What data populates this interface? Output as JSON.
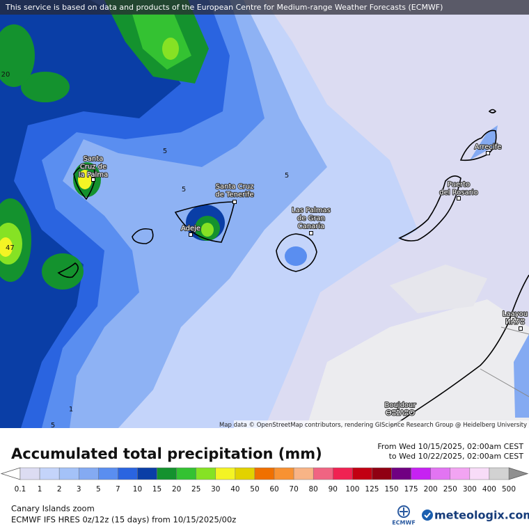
{
  "banner": "This service is based on data and products of the European Centre for Medium-range Weather Forecasts (ECMWF)",
  "places": [
    {
      "lines": [
        "Santa",
        "Cruz de",
        "la Palma"
      ]
    },
    {
      "lines": [
        "Santa Cruz",
        "de Tenerife"
      ]
    },
    {
      "lines": [
        "Adeje"
      ]
    },
    {
      "lines": [
        "Las Palmas",
        "de Gran",
        "Canaria"
      ]
    },
    {
      "lines": [
        "Puerto",
        "del Rosario"
      ]
    },
    {
      "lines": [
        "Arrecife"
      ]
    },
    {
      "lines": [
        "Laayou",
        "ⵍⵄⵢⵓ"
      ]
    },
    {
      "lines": [
        "Boujdour",
        "ⴱⵓⵊⴷⵓⵔ"
      ]
    }
  ],
  "contour_labels": [
    "20",
    "5",
    "5",
    "5",
    "47",
    "5",
    "1"
  ],
  "attribution": "Map data © OpenStreetMap contributors, rendering GIScience Research Group @ Heidelberg University",
  "legend": {
    "title": "Accumulated total precipitation (mm)",
    "period_from": "From Wed 10/15/2025, 02:00am CEST",
    "period_to": "to Wed 10/22/2025, 02:00am CEST",
    "labels": [
      0.1,
      1,
      2,
      3,
      5,
      7,
      10,
      15,
      20,
      25,
      30,
      40,
      50,
      60,
      70,
      80,
      90,
      100,
      125,
      150,
      175,
      200,
      250,
      300,
      400,
      500
    ],
    "colors": [
      "#dcdcf2",
      "#c4d4fa",
      "#a4c2f8",
      "#84aaf2",
      "#5a8ef0",
      "#2a64e0",
      "#0a3ea6",
      "#14922e",
      "#34c232",
      "#86e224",
      "#f4f424",
      "#e2d200",
      "#f07000",
      "#f89232",
      "#f8b486",
      "#f06482",
      "#f02252",
      "#c20012",
      "#900012",
      "#700082",
      "#c622f2",
      "#e274f2",
      "#f2a4f2",
      "#f8dcf8",
      "#d2d2d2"
    ],
    "below_color": "#ffffff",
    "above_color": "#909090"
  },
  "footer": {
    "region": "Canary Islands zoom",
    "model": "ECMWF IFS HRES 0z/12z (15 days) from  10/15/2025/00z"
  },
  "logos": {
    "ecmwf": "ECMWF",
    "meteologix": "meteologix.com"
  }
}
